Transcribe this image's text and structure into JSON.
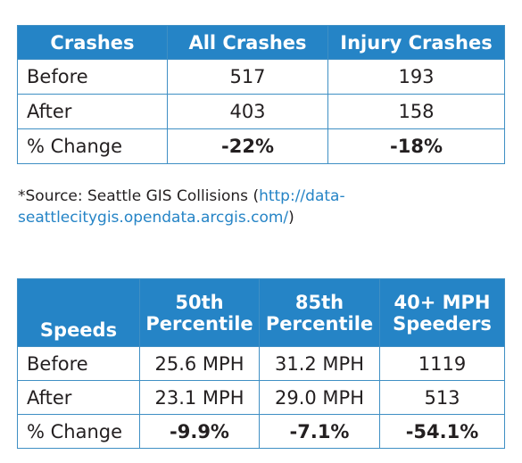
{
  "crashes": {
    "headers": [
      "Crashes",
      "All Crashes",
      "Injury Crashes"
    ],
    "rows": [
      {
        "label": "Before",
        "all": "517",
        "injury": "193"
      },
      {
        "label": "After",
        "all": "403",
        "injury": "158"
      },
      {
        "label": "% Change",
        "all": "-22%",
        "injury": "-18%"
      }
    ]
  },
  "source": {
    "prefix": "*Source: Seattle GIS Collisions (",
    "link": "http://data-seattlecitygis.opendata.arcgis.com/",
    "suffix": ")"
  },
  "speeds": {
    "headers": [
      "Speeds",
      "50th Percentile",
      "85th Percentile",
      "40+ MPH Speeders"
    ],
    "rows": [
      {
        "label": "Before",
        "p50": "25.6 MPH",
        "p85": "31.2 MPH",
        "speeders": "1119"
      },
      {
        "label": "After",
        "p50": "23.1 MPH",
        "p85": "29.0 MPH",
        "speeders": "513"
      },
      {
        "label": "% Change",
        "p50": "-9.9%",
        "p85": "-7.1%",
        "speeders": "-54.1%"
      }
    ]
  },
  "colors": {
    "header_background": "#2584c6",
    "header_text": "#ffffff",
    "border": "#3f8fc4",
    "link": "#2584c6"
  }
}
